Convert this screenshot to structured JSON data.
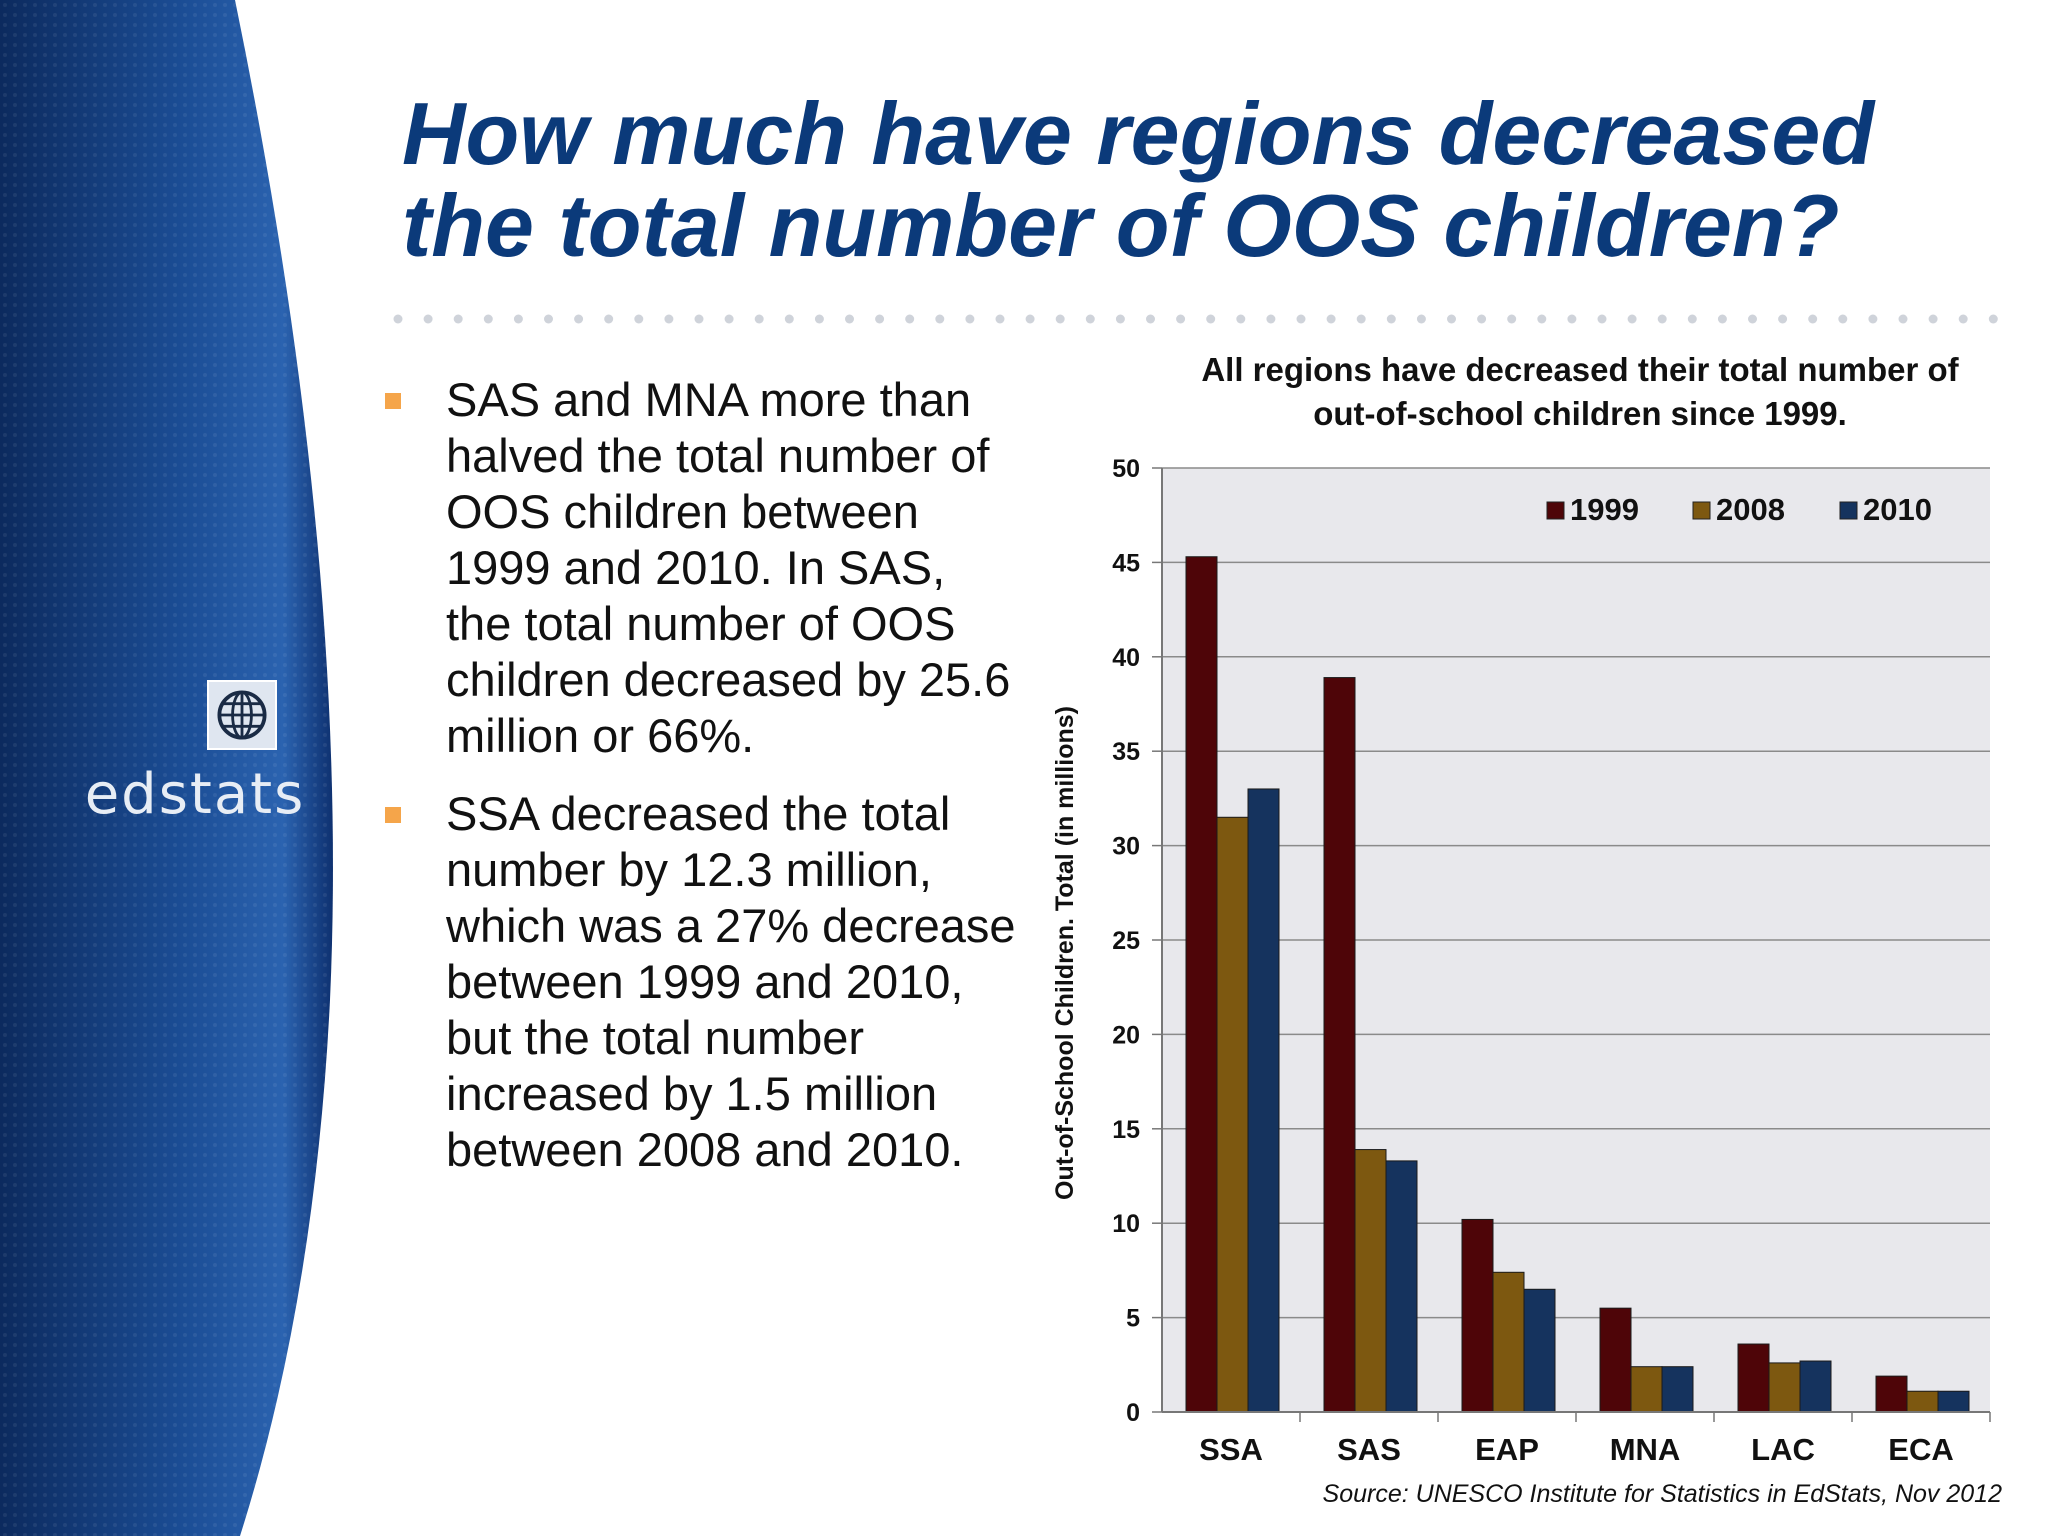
{
  "slide": {
    "title": "How much have regions decreased the total number of OOS children?",
    "logo_text": "edstats",
    "bullets": [
      "SAS and MNA more than halved the total number of OOS children between 1999 and 2010. In SAS, the total number of OOS children decreased by 25.6 million or 66%.",
      "SSA decreased the total number by 12.3 million, which was a 27% decrease between 1999 and 2010, but the total number increased by 1.5 million between 2008 and 2010."
    ],
    "colors": {
      "title": "#0b3a7a",
      "bullet_marker": "#f5a54a",
      "side_panel": "#123a7a"
    }
  },
  "chart_data": {
    "type": "bar",
    "title_lines": [
      "All regions have decreased their total number of",
      "out-of-school children since 1999."
    ],
    "ylabel": "Out-of-School Children. Total (in millions)",
    "xlabel": "",
    "categories": [
      "SSA",
      "SAS",
      "EAP",
      "MNA",
      "LAC",
      "ECA"
    ],
    "series": [
      {
        "name": "1999",
        "color": "#4e0508",
        "values": [
          45.3,
          38.9,
          10.2,
          5.5,
          3.6,
          1.9
        ]
      },
      {
        "name": "2008",
        "color": "#7d5810",
        "values": [
          31.5,
          13.9,
          7.4,
          2.4,
          2.6,
          1.1
        ]
      },
      {
        "name": "2010",
        "color": "#15335e",
        "values": [
          33.0,
          13.3,
          6.5,
          2.4,
          2.7,
          1.1
        ]
      }
    ],
    "ylim": [
      0,
      50
    ],
    "yticks": [
      "0",
      "5",
      "10",
      "15",
      "20",
      "25",
      "30",
      "35",
      "40",
      "45",
      "50"
    ],
    "grid": true,
    "legend_position": "top-right",
    "plot_background": "#e8e8ec",
    "source": "Source: UNESCO Institute for Statistics in EdStats, Nov 2012"
  }
}
